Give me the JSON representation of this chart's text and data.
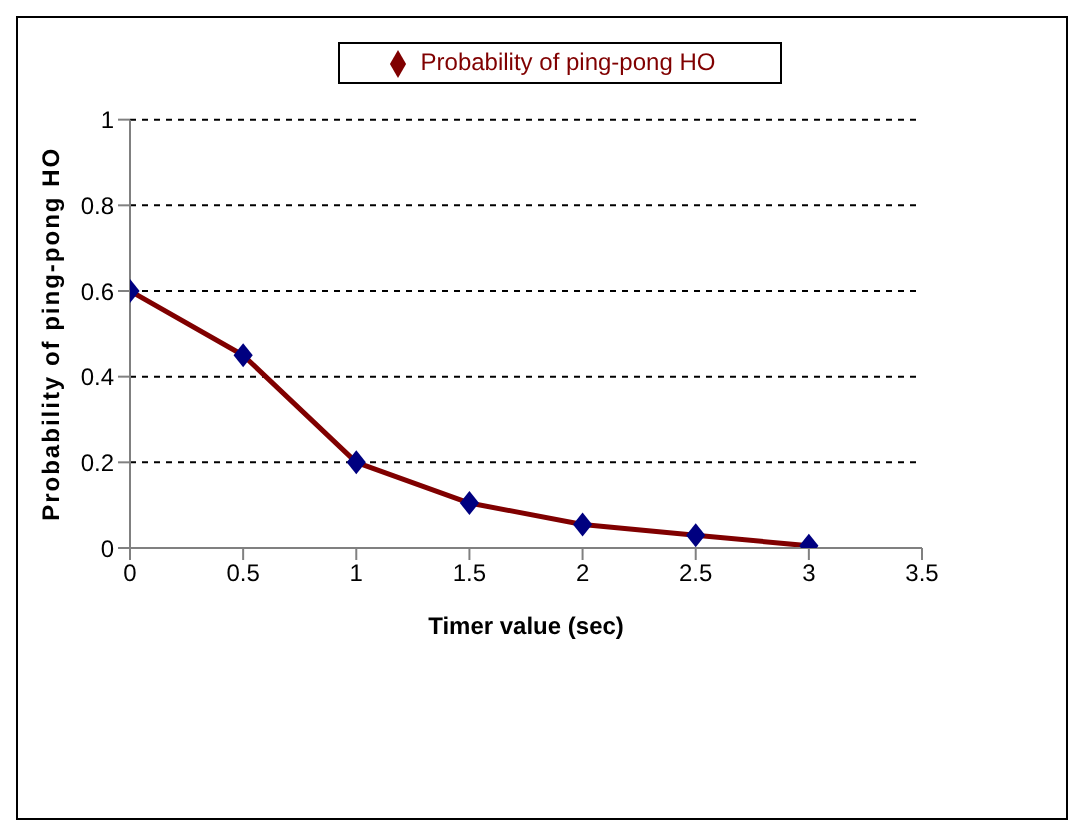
{
  "chart_data": {
    "type": "line",
    "xlabel": "Timer value (sec)",
    "ylabel": "Probability of ping-pong HO",
    "x": [
      0,
      0.5,
      1,
      1.5,
      2,
      2.5,
      3
    ],
    "series": [
      {
        "name": "Probability of ping-pong HO",
        "color": "#800000",
        "values": [
          0.6,
          0.45,
          0.2,
          0.105,
          0.055,
          0.03,
          0.005
        ]
      }
    ],
    "xlim": [
      0,
      3.5
    ],
    "xticks": [
      0,
      0.5,
      1,
      1.5,
      2,
      2.5,
      3,
      3.5
    ],
    "ylim": [
      0,
      1
    ],
    "yticks": [
      0,
      0.2,
      0.4,
      0.6,
      0.8,
      1
    ],
    "grid": "y",
    "legend": "top",
    "marker": "diamond",
    "line_style": "solid"
  }
}
